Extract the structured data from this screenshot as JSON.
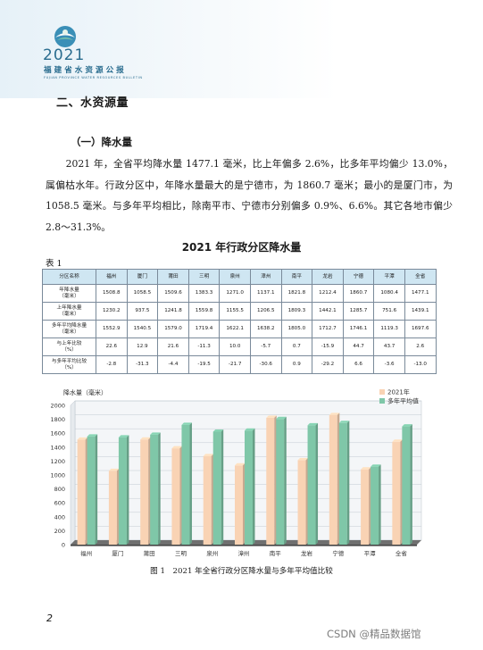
{
  "header": {
    "year": "2021",
    "name": "福建省水资源公报",
    "name_en": "FUJIAN PROVINCE WATER RESOURCES BULLETIN"
  },
  "section_title": "二、水资源量",
  "subsection_title": "（一）降水量",
  "paragraph": "2021 年，全省平均降水量 1477.1 毫米，比上年偏多 2.6%，比多年平均偏少 13.0%，属偏枯水年。行政分区中，年降水量最大的是宁德市，为 1860.7 毫米；最小的是厦门市，为 1058.5 毫米。与多年平均相比，除南平市、宁德市分别偏多 0.9%、6.6%。其它各地市偏少 2.8～31.3%。",
  "table": {
    "title": "2021 年行政分区降水量",
    "label": "表 1",
    "columns": [
      "分区名称",
      "福州",
      "厦门",
      "莆田",
      "三明",
      "泉州",
      "漳州",
      "南平",
      "龙岩",
      "宁德",
      "平潭",
      "全省"
    ],
    "rows": [
      {
        "label": "年降水量\n（毫米）",
        "values": [
          "1508.8",
          "1058.5",
          "1509.6",
          "1383.3",
          "1271.0",
          "1137.1",
          "1821.8",
          "1212.4",
          "1860.7",
          "1080.4",
          "1477.1"
        ]
      },
      {
        "label": "上年降水量\n（毫米）",
        "values": [
          "1230.2",
          "937.5",
          "1241.8",
          "1559.8",
          "1155.5",
          "1206.5",
          "1809.3",
          "1442.1",
          "1285.7",
          "751.6",
          "1439.1"
        ]
      },
      {
        "label": "多年平均降水量\n（毫米）",
        "values": [
          "1552.9",
          "1540.5",
          "1579.0",
          "1719.4",
          "1622.1",
          "1638.2",
          "1805.0",
          "1712.7",
          "1746.1",
          "1119.3",
          "1697.6"
        ]
      },
      {
        "label": "与上年比较\n（%）",
        "values": [
          "22.6",
          "12.9",
          "21.6",
          "-11.3",
          "10.0",
          "-5.7",
          "0.7",
          "-15.9",
          "44.7",
          "43.7",
          "2.6"
        ]
      },
      {
        "label": "与多年平均比较\n（%）",
        "values": [
          "-2.8",
          "-31.3",
          "-4.4",
          "-19.5",
          "-21.7",
          "-30.6",
          "0.9",
          "-29.2",
          "6.6",
          "-3.6",
          "-13.0"
        ]
      }
    ]
  },
  "chart_data": {
    "type": "bar",
    "title": "",
    "ylabel": "降水量（毫米）",
    "xlabel": "",
    "ylim": [
      0,
      2000
    ],
    "yticks": [
      0,
      200,
      400,
      600,
      800,
      1000,
      1200,
      1400,
      1600,
      1800,
      2000
    ],
    "categories": [
      "福州",
      "厦门",
      "莆田",
      "三明",
      "泉州",
      "漳州",
      "南平",
      "龙岩",
      "宁德",
      "平潭",
      "全省"
    ],
    "series": [
      {
        "name": "2021年",
        "color": "#f9d3b4",
        "values": [
          1508.8,
          1058.5,
          1509.6,
          1383.3,
          1271.0,
          1137.1,
          1821.8,
          1212.4,
          1860.7,
          1080.4,
          1477.1
        ]
      },
      {
        "name": "多年平均值",
        "color": "#7fc7a8",
        "values": [
          1552.9,
          1540.5,
          1579.0,
          1719.4,
          1622.1,
          1638.2,
          1805.0,
          1712.7,
          1746.1,
          1119.3,
          1697.6
        ]
      }
    ],
    "legend": "top-right",
    "grid": true
  },
  "caption": "图 1　2021 年全省行政分区降水量与多年平均值比较",
  "page_number": "2",
  "watermark": "CSDN @精品数据馆"
}
